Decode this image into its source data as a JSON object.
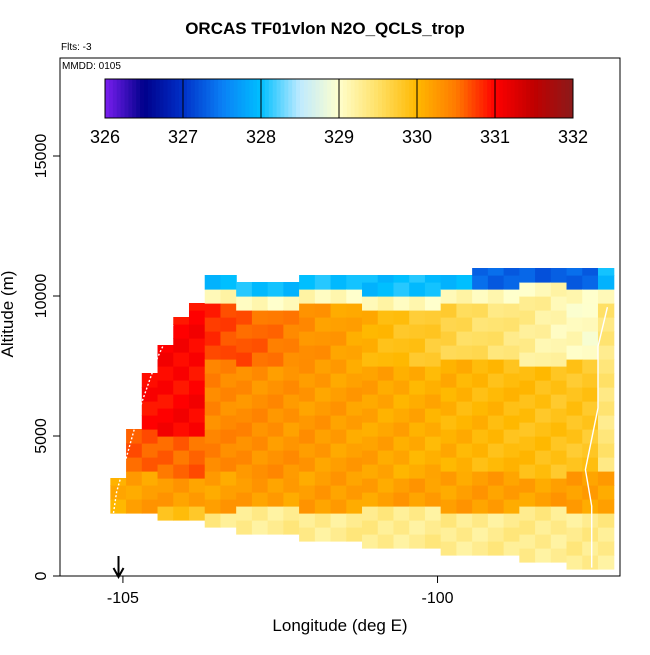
{
  "chart_data": {
    "type": "heatmap",
    "title": "ORCAS TF01vlon N2O_QCLS_trop",
    "flights_label": "Flts: -3",
    "date_label": "MMDD: 0105",
    "xlabel": "Longitude (deg E)",
    "ylabel": "Altitude (m)",
    "xlim": [
      -106,
      -97.1
    ],
    "ylim": [
      0,
      18500
    ],
    "xticks": [
      -105,
      -100
    ],
    "yticks": [
      0,
      5000,
      10000,
      15000
    ],
    "xtick_labels": [
      "-105",
      "-100"
    ],
    "ytick_labels": [
      "0",
      "5000",
      "10000",
      "15000"
    ],
    "colorbar": {
      "range": [
        326,
        332
      ],
      "ticks": [
        326,
        327,
        328,
        329,
        330,
        331,
        332
      ],
      "tick_labels": [
        "326",
        "327",
        "328",
        "329",
        "330",
        "331",
        "332"
      ],
      "colors": [
        "#7a1ff0",
        "#00008b",
        "#0030c8",
        "#0a7ff5",
        "#00bfff",
        "#bfeaff",
        "#ffffcc",
        "#ffe066",
        "#ffb800",
        "#ff7a00",
        "#ff0000",
        "#c00000",
        "#8b1a1a"
      ]
    },
    "arrow_longitude": -105.07,
    "cell_size": {
      "dlon": 0.25,
      "dalt": 500
    },
    "columns": [
      {
        "lon_start": -105.2,
        "alt_min": 2250,
        "alt_max": 3500,
        "profile": "flat_low"
      },
      {
        "lon_start": -104.95,
        "alt_min": 2250,
        "alt_max": 5250,
        "profile": "west"
      },
      {
        "lon_start": -104.7,
        "alt_min": 2250,
        "alt_max": 7250,
        "profile": "west"
      },
      {
        "lon_start": -104.45,
        "alt_min": 2000,
        "alt_max": 8250,
        "profile": "west"
      },
      {
        "lon_start": -104.2,
        "alt_min": 2000,
        "alt_max": 9250,
        "profile": "west"
      },
      {
        "lon_start": -103.95,
        "alt_min": 2000,
        "alt_max": 9750,
        "profile": "west"
      },
      {
        "lon_start": -103.7,
        "alt_min": 1750,
        "alt_max": 10750,
        "profile": "mid"
      },
      {
        "lon_start": -103.45,
        "alt_min": 1750,
        "alt_max": 10750,
        "profile": "mid"
      },
      {
        "lon_start": -103.2,
        "alt_min": 1500,
        "alt_max": 10500,
        "profile": "mid"
      },
      {
        "lon_start": -102.95,
        "alt_min": 1500,
        "alt_max": 10500,
        "profile": "mid"
      },
      {
        "lon_start": -102.7,
        "alt_min": 1500,
        "alt_max": 10500,
        "profile": "mid"
      },
      {
        "lon_start": -102.45,
        "alt_min": 1500,
        "alt_max": 10500,
        "profile": "mid"
      },
      {
        "lon_start": -102.2,
        "alt_min": 1250,
        "alt_max": 10750,
        "profile": "mid"
      },
      {
        "lon_start": -101.95,
        "alt_min": 1250,
        "alt_max": 10750,
        "profile": "mid"
      },
      {
        "lon_start": -101.7,
        "alt_min": 1250,
        "alt_max": 10750,
        "profile": "mid"
      },
      {
        "lon_start": -101.45,
        "alt_min": 1250,
        "alt_max": 10750,
        "profile": "mid"
      },
      {
        "lon_start": -101.2,
        "alt_min": 1000,
        "alt_max": 10750,
        "profile": "mid"
      },
      {
        "lon_start": -100.95,
        "alt_min": 1000,
        "alt_max": 10750,
        "profile": "mid"
      },
      {
        "lon_start": -100.7,
        "alt_min": 1000,
        "alt_max": 10750,
        "profile": "mid"
      },
      {
        "lon_start": -100.45,
        "alt_min": 1000,
        "alt_max": 10750,
        "profile": "mid"
      },
      {
        "lon_start": -100.2,
        "alt_min": 1000,
        "alt_max": 10750,
        "profile": "mid"
      },
      {
        "lon_start": -99.95,
        "alt_min": 750,
        "alt_max": 10750,
        "profile": "mid"
      },
      {
        "lon_start": -99.7,
        "alt_min": 750,
        "alt_max": 10750,
        "profile": "mid"
      },
      {
        "lon_start": -99.45,
        "alt_min": 750,
        "alt_max": 11000,
        "profile": "east"
      },
      {
        "lon_start": -99.2,
        "alt_min": 750,
        "alt_max": 11000,
        "profile": "east"
      },
      {
        "lon_start": -98.95,
        "alt_min": 750,
        "alt_max": 11000,
        "profile": "east"
      },
      {
        "lon_start": -98.7,
        "alt_min": 500,
        "alt_max": 11000,
        "profile": "east"
      },
      {
        "lon_start": -98.45,
        "alt_min": 500,
        "alt_max": 11000,
        "profile": "east"
      },
      {
        "lon_start": -98.2,
        "alt_min": 500,
        "alt_max": 11000,
        "profile": "east"
      },
      {
        "lon_start": -97.95,
        "alt_min": 250,
        "alt_max": 11000,
        "profile": "east"
      },
      {
        "lon_start": -97.7,
        "alt_min": 250,
        "alt_max": 11000,
        "profile": "east"
      },
      {
        "lon_start": -97.45,
        "alt_min": 250,
        "alt_max": 11000,
        "profile": "edge"
      }
    ]
  }
}
